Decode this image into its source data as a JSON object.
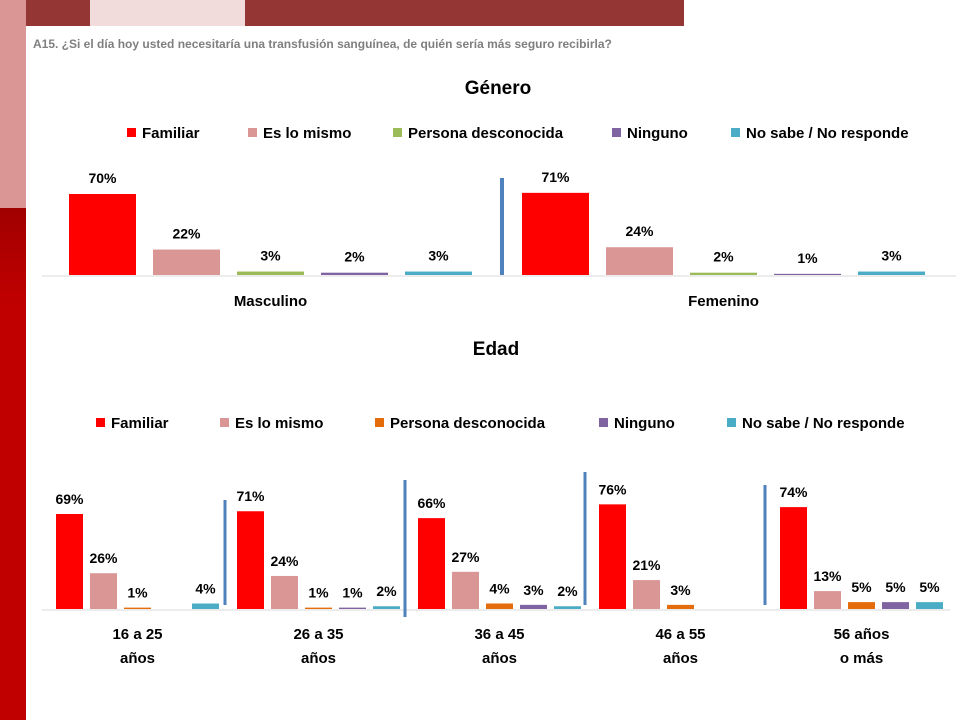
{
  "question": "A15. ¿Si el día hoy usted necesitaría una transfusión sanguínea, de quién sería más seguro recibirla?",
  "colors": {
    "header_dark": "#943634",
    "header_light": "#f2dcdb",
    "strip_light": "#d99694",
    "strip_dark": "#c00000"
  },
  "chart_data": [
    {
      "type": "bar",
      "title": "Género",
      "categories": [
        "Masculino",
        "Femenino"
      ],
      "legend_position": "top",
      "series": [
        {
          "name": "Familiar",
          "color": "#ff0000",
          "values": [
            70,
            71
          ],
          "labels": [
            "70%",
            "71%"
          ]
        },
        {
          "name": "Es lo mismo",
          "color": "#d99694",
          "values": [
            22,
            24
          ],
          "labels": [
            "22%",
            "24%"
          ]
        },
        {
          "name": "Persona desconocida",
          "color": "#9bbb59",
          "values": [
            3,
            2
          ],
          "labels": [
            "3%",
            "2%"
          ]
        },
        {
          "name": "Ninguno",
          "color": "#8064a2",
          "values": [
            2,
            1
          ],
          "labels": [
            "2%",
            "1%"
          ]
        },
        {
          "name": "No sabe / No responde",
          "color": "#4bacc6",
          "values": [
            3,
            3
          ],
          "labels": [
            "3%",
            "3%"
          ]
        }
      ]
    },
    {
      "type": "bar",
      "title": "Edad",
      "categories": [
        [
          "16 a 25",
          "años"
        ],
        [
          "26 a 35",
          "años"
        ],
        [
          "36 a 45",
          "años"
        ],
        [
          "46 a 55",
          "años"
        ],
        [
          "56 años",
          "o más"
        ]
      ],
      "legend_position": "top",
      "series": [
        {
          "name": "Familiar",
          "color": "#ff0000",
          "values": [
            69,
            71,
            66,
            76,
            74
          ],
          "labels": [
            "69%",
            "71%",
            "66%",
            "76%",
            "74%"
          ]
        },
        {
          "name": "Es lo mismo",
          "color": "#d99694",
          "values": [
            26,
            24,
            27,
            21,
            13
          ],
          "labels": [
            "26%",
            "24%",
            "27%",
            "21%",
            "13%"
          ]
        },
        {
          "name": "Persona desconocida",
          "color": "#e46c0a",
          "values": [
            1,
            1,
            4,
            3,
            5
          ],
          "labels": [
            "1%",
            "1%",
            "4%",
            "3%",
            "5%"
          ]
        },
        {
          "name": "Ninguno",
          "color": "#8064a2",
          "values": [
            0,
            1,
            3,
            0,
            5
          ],
          "labels": [
            "",
            "1%",
            "3%",
            "",
            "5%"
          ]
        },
        {
          "name": "No sabe / No responde",
          "color": "#4bacc6",
          "values": [
            4,
            2,
            2,
            0,
            5
          ],
          "labels": [
            "4%",
            "2%",
            "2%",
            "",
            "5%"
          ]
        }
      ]
    }
  ]
}
